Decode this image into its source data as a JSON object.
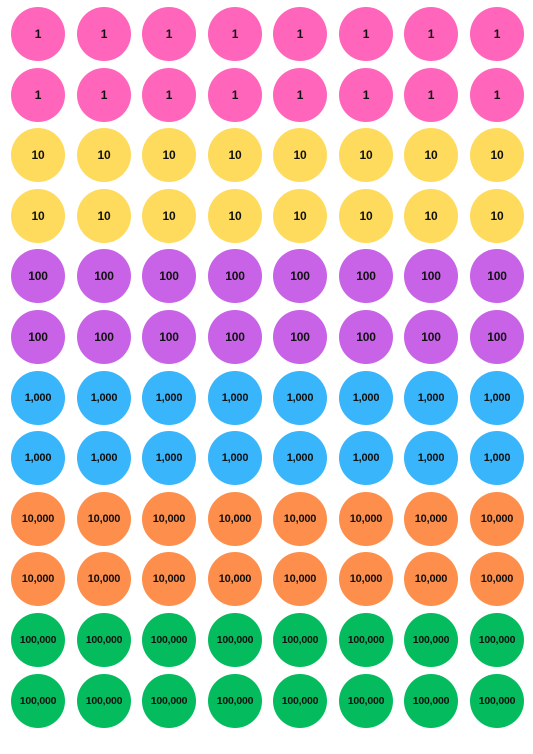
{
  "sheet": {
    "title": "",
    "rows": [
      {
        "label": "1",
        "color": "#fe65bb"
      },
      {
        "label": "1",
        "color": "#fe65bb"
      },
      {
        "label": "10",
        "color": "#fedb5c"
      },
      {
        "label": "10",
        "color": "#fedb5c"
      },
      {
        "label": "100",
        "color": "#c863e7"
      },
      {
        "label": "100",
        "color": "#c863e7"
      },
      {
        "label": "1,000",
        "color": "#38b5fb"
      },
      {
        "label": "1,000",
        "color": "#38b5fb"
      },
      {
        "label": "10,000",
        "color": "#fe8e4c"
      },
      {
        "label": "10,000",
        "color": "#fe8e4c"
      },
      {
        "label": "100,000",
        "color": "#04bc5e"
      },
      {
        "label": "100,000",
        "color": "#04bc5e"
      }
    ],
    "columns": 8
  }
}
